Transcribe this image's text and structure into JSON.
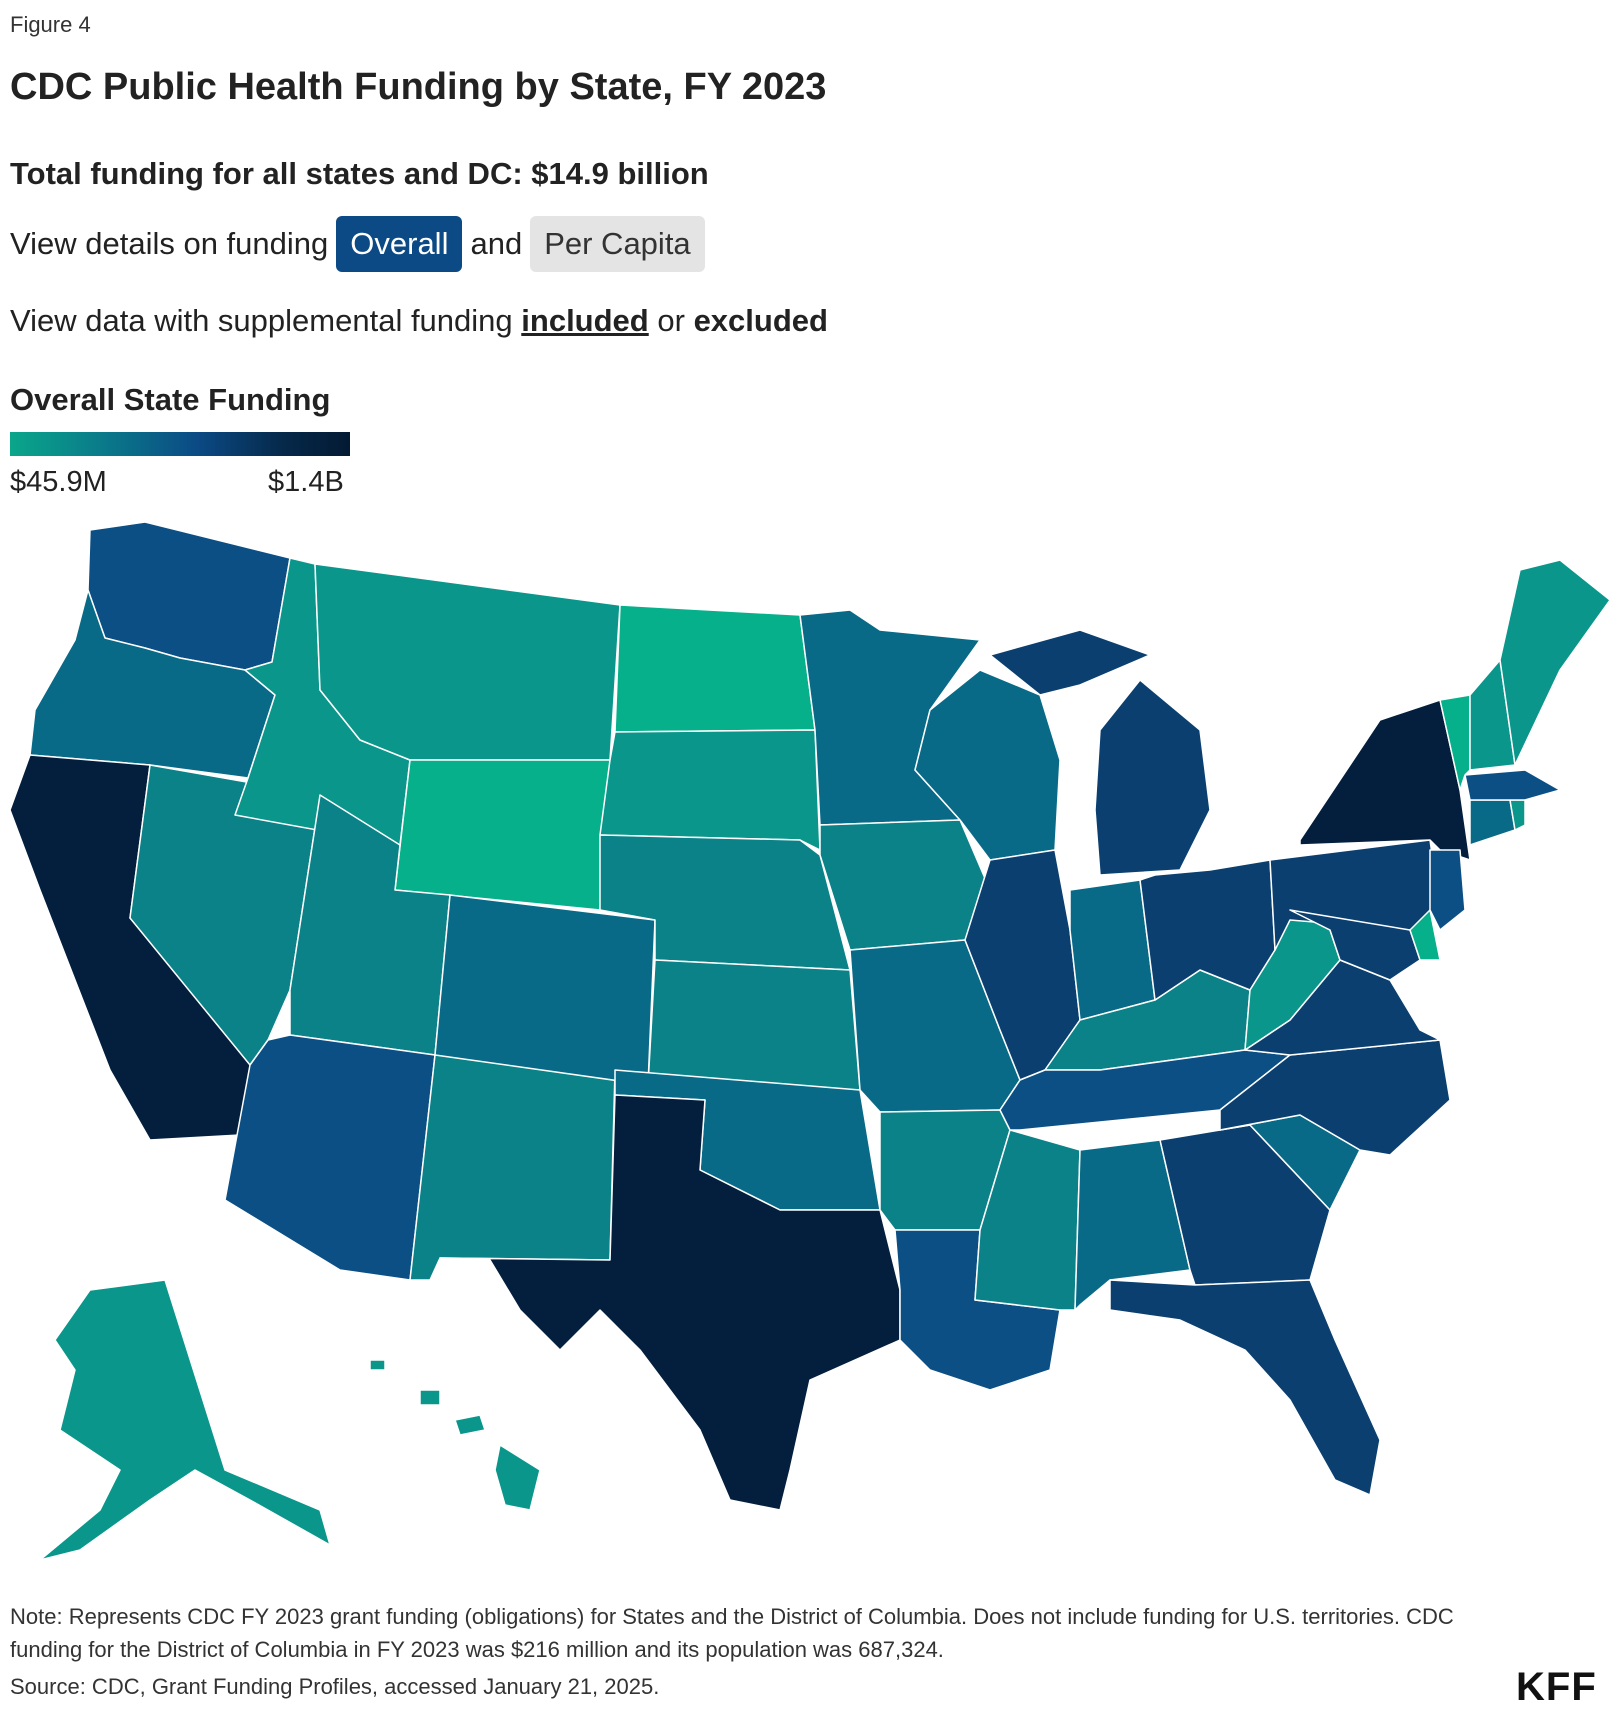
{
  "figure_label": "Figure 4",
  "title": "CDC Public Health Funding by State, FY 2023",
  "total": "Total funding for all states and DC: $14.9 billion",
  "view_toggle": {
    "prefix": "View details on funding",
    "option_overall": "Overall",
    "connector": "and",
    "option_per_capita": "Per Capita",
    "selected": "Overall"
  },
  "supplemental": {
    "prefix": "View data with supplemental funding",
    "option_included": "included",
    "connector": "or",
    "option_excluded": "excluded",
    "selected": "included"
  },
  "legend": {
    "title": "Overall State Funding",
    "min_label": "$45.9M",
    "max_label": "$1.4B"
  },
  "colors": {
    "lowest": "#06b08a",
    "low": "#0a968a",
    "mid_low": "#0a8287",
    "mid": "#086a86",
    "mid_high": "#0b4f85",
    "high": "#0a3f70",
    "highest": "#031f3d"
  },
  "map_data": {
    "type": "choropleth",
    "regions": [
      {
        "id": "WA",
        "bucket": "mid_high"
      },
      {
        "id": "OR",
        "bucket": "mid"
      },
      {
        "id": "CA",
        "bucket": "highest"
      },
      {
        "id": "NV",
        "bucket": "mid_low"
      },
      {
        "id": "ID",
        "bucket": "low"
      },
      {
        "id": "MT",
        "bucket": "low"
      },
      {
        "id": "WY",
        "bucket": "lowest"
      },
      {
        "id": "UT",
        "bucket": "mid_low"
      },
      {
        "id": "AZ",
        "bucket": "mid_high"
      },
      {
        "id": "NM",
        "bucket": "mid_low"
      },
      {
        "id": "CO",
        "bucket": "mid"
      },
      {
        "id": "ND",
        "bucket": "lowest"
      },
      {
        "id": "SD",
        "bucket": "low"
      },
      {
        "id": "NE",
        "bucket": "mid_low"
      },
      {
        "id": "KS",
        "bucket": "mid_low"
      },
      {
        "id": "OK",
        "bucket": "mid"
      },
      {
        "id": "TX",
        "bucket": "highest"
      },
      {
        "id": "MN",
        "bucket": "mid"
      },
      {
        "id": "IA",
        "bucket": "mid_low"
      },
      {
        "id": "MO",
        "bucket": "mid"
      },
      {
        "id": "AR",
        "bucket": "mid_low"
      },
      {
        "id": "LA",
        "bucket": "mid_high"
      },
      {
        "id": "WI",
        "bucket": "mid"
      },
      {
        "id": "IL",
        "bucket": "high"
      },
      {
        "id": "MS",
        "bucket": "mid_low"
      },
      {
        "id": "MI",
        "bucket": "high"
      },
      {
        "id": "IN",
        "bucket": "mid"
      },
      {
        "id": "KY",
        "bucket": "mid_low"
      },
      {
        "id": "TN",
        "bucket": "mid_high"
      },
      {
        "id": "AL",
        "bucket": "mid"
      },
      {
        "id": "OH",
        "bucket": "high"
      },
      {
        "id": "GA",
        "bucket": "high"
      },
      {
        "id": "FL",
        "bucket": "high"
      },
      {
        "id": "SC",
        "bucket": "mid"
      },
      {
        "id": "NC",
        "bucket": "high"
      },
      {
        "id": "VA",
        "bucket": "high"
      },
      {
        "id": "WV",
        "bucket": "low"
      },
      {
        "id": "PA",
        "bucket": "high"
      },
      {
        "id": "NY",
        "bucket": "highest"
      },
      {
        "id": "MD",
        "bucket": "high"
      },
      {
        "id": "DE",
        "bucket": "lowest"
      },
      {
        "id": "NJ",
        "bucket": "mid_high"
      },
      {
        "id": "CT",
        "bucket": "mid"
      },
      {
        "id": "RI",
        "bucket": "low"
      },
      {
        "id": "MA",
        "bucket": "mid_high"
      },
      {
        "id": "VT",
        "bucket": "lowest"
      },
      {
        "id": "NH",
        "bucket": "low"
      },
      {
        "id": "ME",
        "bucket": "low"
      },
      {
        "id": "AK",
        "bucket": "low"
      },
      {
        "id": "HI",
        "bucket": "low"
      }
    ]
  },
  "note": "Note: Represents CDC FY 2023 grant funding (obligations) for States and the District of Columbia. Does not include funding for U.S. territories. CDC funding for the District of Columbia in FY 2023 was $216 million and its population was 687,324.",
  "source": "Source: CDC, Grant Funding Profiles, accessed January 21, 2025.",
  "logo": "KFF"
}
